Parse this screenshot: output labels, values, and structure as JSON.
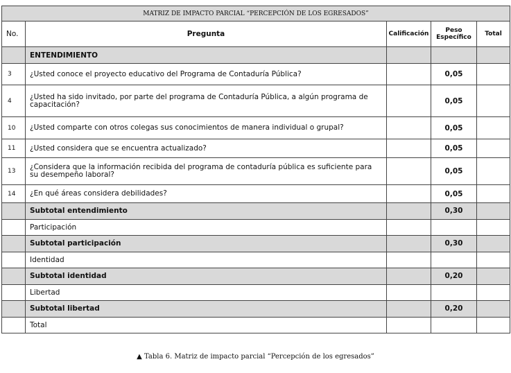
{
  "table": {
    "title": "MATRIZ DE IMPACTO PARCIAL “PERCEPCIÓN DE LOS EGRESADOS”",
    "headers": {
      "no": "No.",
      "pregunta": "Pregunta",
      "calificacion": "Calificación",
      "peso": "Peso Específico",
      "total": "Total"
    },
    "section": "ENTENDIMIENTO",
    "questions": [
      {
        "no": "3",
        "text": "¿Usted conoce el proyecto educativo del Programa de Contaduría Pública?",
        "peso": "0,05"
      },
      {
        "no": "4",
        "text": "¿Usted ha sido invitado, por parte del  programa de Contaduría Pública, a algún programa de capacitación?",
        "peso": "0,05"
      },
      {
        "no": "10",
        "text": "¿Usted comparte con otros colegas sus conocimientos de manera individual o grupal?",
        "peso": "0,05"
      },
      {
        "no": "11",
        "text": "¿Usted considera que se encuentra actualizado?",
        "peso": "0,05"
      },
      {
        "no": "13",
        "text": "¿Considera que la información recibida del programa de contaduría pública es suficiente para su desempeño laboral?",
        "peso": "0,05"
      },
      {
        "no": "14",
        "text": "¿En qué áreas considera debilidades?",
        "peso": "0,05"
      }
    ],
    "rows": [
      {
        "label": "Subtotal entendimiento",
        "peso": "0,30",
        "subtotal": true
      },
      {
        "label": "Participación",
        "peso": "",
        "subtotal": false
      },
      {
        "label": "Subtotal participación",
        "peso": "0,30",
        "subtotal": true
      },
      {
        "label": "Identidad",
        "peso": "",
        "subtotal": false
      },
      {
        "label": "Subtotal identidad",
        "peso": "0,20",
        "subtotal": true
      },
      {
        "label": "Libertad",
        "peso": "",
        "subtotal": false
      },
      {
        "label": "Subtotal libertad",
        "peso": "0,20",
        "subtotal": true
      },
      {
        "label": "Total",
        "peso": "",
        "subtotal": false
      }
    ]
  },
  "caption": {
    "marker": "▲",
    "text": "Tabla 6. Matriz de impacto parcial “Percepción de los egresados”"
  }
}
